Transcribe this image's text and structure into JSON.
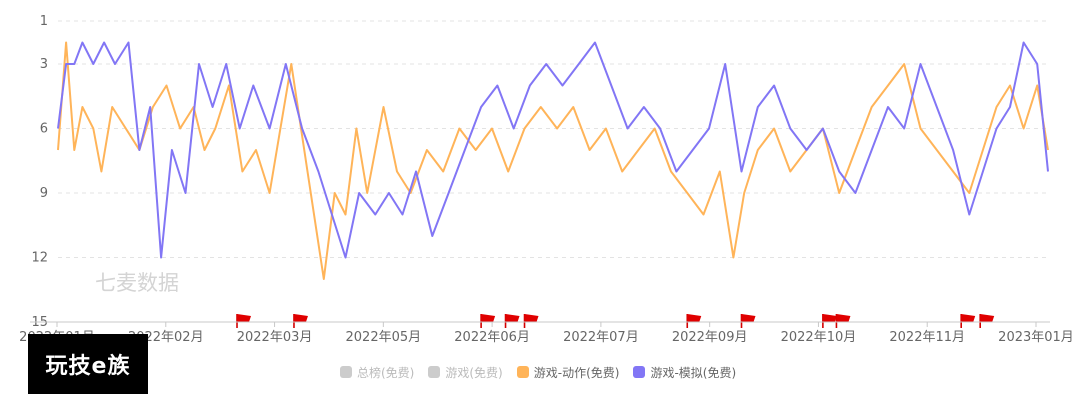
{
  "chart_data": {
    "type": "line",
    "y_axis": {
      "reversed": true,
      "ticks": [
        1,
        3,
        6,
        9,
        12,
        15
      ],
      "range": [
        1,
        15
      ]
    },
    "x_axis": {
      "ticks": [
        "2022年01月",
        "2022年02月",
        "2022年03月",
        "2022年05月",
        "2022年06月",
        "2022年07月",
        "2022年09月",
        "2022年10月",
        "2022年11月",
        "2023年01月"
      ],
      "range": [
        "2022-01-01",
        "2023-01-01"
      ]
    },
    "grid": true,
    "legend_position": "bottom",
    "legend": [
      {
        "label": "总榜(免费)",
        "color": "#cccccc",
        "active": false
      },
      {
        "label": "游戏(免费)",
        "color": "#cccccc",
        "active": false
      },
      {
        "label": "游戏-动作(免费)",
        "color": "#ffb459",
        "active": true
      },
      {
        "label": "游戏-模拟(免费)",
        "color": "#8276f5",
        "active": true
      }
    ],
    "series": [
      {
        "name": "游戏-动作(免费)",
        "color": "#ffb459",
        "points": [
          [
            "2022-01-01",
            7
          ],
          [
            "2022-01-04",
            2
          ],
          [
            "2022-01-07",
            7
          ],
          [
            "2022-01-10",
            5
          ],
          [
            "2022-01-14",
            6
          ],
          [
            "2022-01-17",
            8
          ],
          [
            "2022-01-21",
            5
          ],
          [
            "2022-01-26",
            6
          ],
          [
            "2022-01-31",
            7
          ],
          [
            "2022-02-05",
            5
          ],
          [
            "2022-02-10",
            4
          ],
          [
            "2022-02-15",
            6
          ],
          [
            "2022-02-20",
            5
          ],
          [
            "2022-02-24",
            7
          ],
          [
            "2022-02-28",
            6
          ],
          [
            "2022-03-05",
            4
          ],
          [
            "2022-03-10",
            8
          ],
          [
            "2022-03-15",
            7
          ],
          [
            "2022-03-20",
            9
          ],
          [
            "2022-03-24",
            6
          ],
          [
            "2022-03-28",
            3
          ],
          [
            "2022-04-03",
            8
          ],
          [
            "2022-04-09",
            13
          ],
          [
            "2022-04-13",
            9
          ],
          [
            "2022-04-17",
            10
          ],
          [
            "2022-04-21",
            6
          ],
          [
            "2022-04-25",
            9
          ],
          [
            "2022-05-01",
            5
          ],
          [
            "2022-05-06",
            8
          ],
          [
            "2022-05-11",
            9
          ],
          [
            "2022-05-17",
            7
          ],
          [
            "2022-05-23",
            8
          ],
          [
            "2022-05-29",
            6
          ],
          [
            "2022-06-04",
            7
          ],
          [
            "2022-06-10",
            6
          ],
          [
            "2022-06-16",
            8
          ],
          [
            "2022-06-22",
            6
          ],
          [
            "2022-06-28",
            5
          ],
          [
            "2022-07-04",
            6
          ],
          [
            "2022-07-10",
            5
          ],
          [
            "2022-07-16",
            7
          ],
          [
            "2022-07-22",
            6
          ],
          [
            "2022-07-28",
            8
          ],
          [
            "2022-08-03",
            7
          ],
          [
            "2022-08-09",
            6
          ],
          [
            "2022-08-15",
            8
          ],
          [
            "2022-08-21",
            9
          ],
          [
            "2022-08-27",
            10
          ],
          [
            "2022-09-02",
            8
          ],
          [
            "2022-09-07",
            12
          ],
          [
            "2022-09-11",
            9
          ],
          [
            "2022-09-16",
            7
          ],
          [
            "2022-09-22",
            6
          ],
          [
            "2022-09-28",
            8
          ],
          [
            "2022-10-04",
            7
          ],
          [
            "2022-10-10",
            6
          ],
          [
            "2022-10-16",
            9
          ],
          [
            "2022-10-22",
            7
          ],
          [
            "2022-10-28",
            5
          ],
          [
            "2022-11-03",
            4
          ],
          [
            "2022-11-09",
            3
          ],
          [
            "2022-11-15",
            6
          ],
          [
            "2022-11-21",
            7
          ],
          [
            "2022-11-27",
            8
          ],
          [
            "2022-12-03",
            9
          ],
          [
            "2022-12-08",
            7
          ],
          [
            "2022-12-13",
            5
          ],
          [
            "2022-12-18",
            4
          ],
          [
            "2022-12-23",
            6
          ],
          [
            "2022-12-28",
            4
          ],
          [
            "2023-01-01",
            7
          ]
        ]
      },
      {
        "name": "游戏-模拟(免费)",
        "color": "#8276f5",
        "points": [
          [
            "2022-01-01",
            6
          ],
          [
            "2022-01-04",
            3
          ],
          [
            "2022-01-07",
            3
          ],
          [
            "2022-01-10",
            2
          ],
          [
            "2022-01-14",
            3
          ],
          [
            "2022-01-18",
            2
          ],
          [
            "2022-01-22",
            3
          ],
          [
            "2022-01-27",
            2
          ],
          [
            "2022-01-31",
            7
          ],
          [
            "2022-02-04",
            5
          ],
          [
            "2022-02-08",
            12
          ],
          [
            "2022-02-12",
            7
          ],
          [
            "2022-02-17",
            9
          ],
          [
            "2022-02-22",
            3
          ],
          [
            "2022-02-27",
            5
          ],
          [
            "2022-03-04",
            3
          ],
          [
            "2022-03-09",
            6
          ],
          [
            "2022-03-14",
            4
          ],
          [
            "2022-03-20",
            6
          ],
          [
            "2022-03-26",
            3
          ],
          [
            "2022-04-01",
            6
          ],
          [
            "2022-04-07",
            8
          ],
          [
            "2022-04-12",
            10
          ],
          [
            "2022-04-17",
            12
          ],
          [
            "2022-04-22",
            9
          ],
          [
            "2022-04-28",
            10
          ],
          [
            "2022-05-03",
            9
          ],
          [
            "2022-05-08",
            10
          ],
          [
            "2022-05-13",
            8
          ],
          [
            "2022-05-19",
            11
          ],
          [
            "2022-05-25",
            9
          ],
          [
            "2022-05-31",
            7
          ],
          [
            "2022-06-06",
            5
          ],
          [
            "2022-06-12",
            4
          ],
          [
            "2022-06-18",
            6
          ],
          [
            "2022-06-24",
            4
          ],
          [
            "2022-06-30",
            3
          ],
          [
            "2022-07-06",
            4
          ],
          [
            "2022-07-12",
            3
          ],
          [
            "2022-07-18",
            2
          ],
          [
            "2022-07-24",
            4
          ],
          [
            "2022-07-30",
            6
          ],
          [
            "2022-08-05",
            5
          ],
          [
            "2022-08-11",
            6
          ],
          [
            "2022-08-17",
            8
          ],
          [
            "2022-08-23",
            7
          ],
          [
            "2022-08-29",
            6
          ],
          [
            "2022-09-04",
            3
          ],
          [
            "2022-09-10",
            8
          ],
          [
            "2022-09-16",
            5
          ],
          [
            "2022-09-22",
            4
          ],
          [
            "2022-09-28",
            6
          ],
          [
            "2022-10-04",
            7
          ],
          [
            "2022-10-10",
            6
          ],
          [
            "2022-10-16",
            8
          ],
          [
            "2022-10-22",
            9
          ],
          [
            "2022-10-28",
            7
          ],
          [
            "2022-11-03",
            5
          ],
          [
            "2022-11-09",
            6
          ],
          [
            "2022-11-15",
            3
          ],
          [
            "2022-11-21",
            5
          ],
          [
            "2022-11-27",
            7
          ],
          [
            "2022-12-03",
            10
          ],
          [
            "2022-12-08",
            8
          ],
          [
            "2022-12-13",
            6
          ],
          [
            "2022-12-18",
            5
          ],
          [
            "2022-12-23",
            2
          ],
          [
            "2022-12-28",
            3
          ],
          [
            "2023-01-01",
            8
          ]
        ]
      }
    ],
    "markers": [
      "2022-03-08",
      "2022-03-29",
      "2022-06-06",
      "2022-06-15",
      "2022-06-22",
      "2022-08-21",
      "2022-09-10",
      "2022-10-10",
      "2022-10-15",
      "2022-11-30",
      "2022-12-07"
    ],
    "watermark": "七麦数据"
  },
  "logo_text": "玩技e族"
}
